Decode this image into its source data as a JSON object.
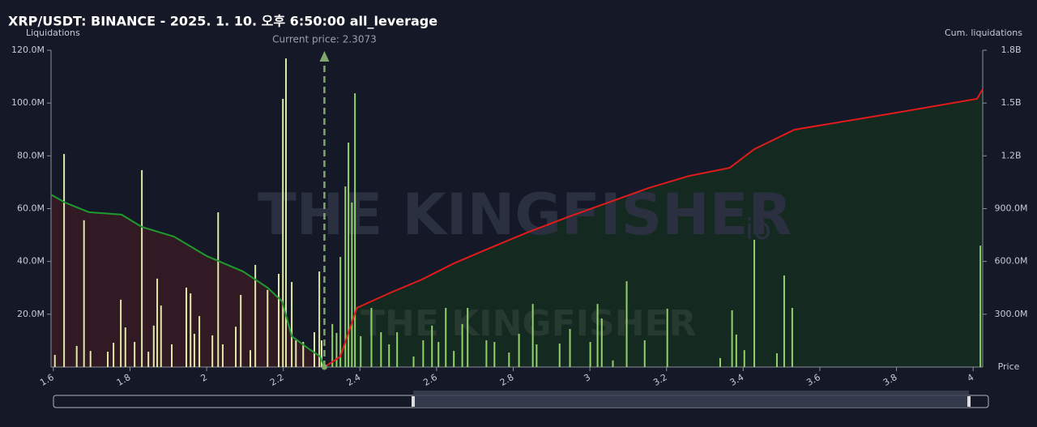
{
  "chart_data": {
    "type": "bar",
    "title": "XRP/USDT: BINANCE - 2025. 1. 10. 오후 6:50:00 all_leverage",
    "y_label": "Liquidations",
    "y2_label": "Cum. liquidations",
    "x_label": "Price",
    "watermark": "THE KINGFISHER",
    "watermark_suffix": "io",
    "annotation": "Current price: 2.3073",
    "current_price": 2.3073,
    "xlim": [
      1.594,
      4.025
    ],
    "xticks": [
      1.6,
      1.8,
      2,
      2.2,
      2.4,
      2.6,
      2.8,
      3,
      3.2,
      3.4,
      3.6,
      3.8,
      4
    ],
    "ylim": [
      0,
      120000000
    ],
    "yticks": [
      {
        "value": 20000000,
        "label": "20.0M"
      },
      {
        "value": 40000000,
        "label": "40.0M"
      },
      {
        "value": 60000000,
        "label": "60.0M"
      },
      {
        "value": 80000000,
        "label": "80.0M"
      },
      {
        "value": 100000000,
        "label": "100.0M"
      },
      {
        "value": 120000000,
        "label": "120.0M"
      }
    ],
    "y2lim": [
      0,
      1800000000
    ],
    "y2ticks": [
      {
        "value": 300000000,
        "label": "300.0M"
      },
      {
        "value": 600000000,
        "label": "600.0M"
      },
      {
        "value": 900000000,
        "label": "900.0M"
      },
      {
        "value": 1200000000,
        "label": "1.2B"
      },
      {
        "value": 1500000000,
        "label": "1.5B"
      },
      {
        "value": 1800000000,
        "label": "1.8B"
      }
    ],
    "series": [
      {
        "type": "bar",
        "color": "#dfe8a6",
        "x": [
          1.604,
          1.628,
          1.661,
          1.68,
          1.697,
          1.742,
          1.757,
          1.776,
          1.788,
          1.812,
          1.831,
          1.848,
          1.862,
          1.871,
          1.881,
          1.909,
          1.947,
          1.958,
          1.968,
          1.981,
          2.015,
          2.03,
          2.042,
          2.076,
          2.089,
          2.114,
          2.127,
          2.159,
          2.188,
          2.199,
          2.207,
          2.222,
          2.233,
          2.252,
          2.281,
          2.294,
          2.3
        ],
        "values": [
          4600000,
          80700000,
          8000000,
          55600000,
          6100000,
          5800000,
          9200000,
          25500000,
          15000000,
          9500000,
          74600000,
          5800000,
          15700000,
          33500000,
          23300000,
          8600000,
          30100000,
          27900000,
          12600000,
          19300000,
          12000000,
          58600000,
          8600000,
          15300000,
          27300000,
          6400000,
          38700000,
          29200000,
          35300000,
          101600000,
          116900000,
          32200000,
          10100000,
          9500000,
          13200000,
          36200000,
          10100000
        ]
      },
      {
        "type": "bar",
        "color": "#93d16e",
        "x": [
          2.328,
          2.339,
          2.349,
          2.362,
          2.37,
          2.379,
          2.387,
          2.402,
          2.43,
          2.455,
          2.476,
          2.497,
          2.54,
          2.565,
          2.588,
          2.605,
          2.624,
          2.645,
          2.667,
          2.681,
          2.73,
          2.751,
          2.789,
          2.815,
          2.851,
          2.861,
          2.921,
          2.948,
          3.001,
          3.02,
          3.031,
          3.06,
          3.096,
          3.143,
          3.202,
          3.34,
          3.371,
          3.382,
          3.403,
          3.429,
          3.488,
          3.507,
          3.528,
          4.019
        ],
        "values": [
          16300000,
          12900000,
          41700000,
          68400000,
          85000000,
          62300000,
          103700000,
          11700000,
          22400000,
          13200000,
          8600000,
          13200000,
          4000000,
          10100000,
          15700000,
          9500000,
          22400000,
          6100000,
          16300000,
          22400000,
          10100000,
          9500000,
          5500000,
          12600000,
          23900000,
          8600000,
          8900000,
          14400000,
          9500000,
          23900000,
          18400000,
          2500000,
          32500000,
          10100000,
          22100000,
          3400000,
          21500000,
          12300000,
          6400000,
          48200000,
          5200000,
          34700000,
          22400000,
          46000000
        ]
      },
      {
        "type": "line",
        "axis": "y2",
        "color": "#1f9a2e",
        "fill": "#321a25",
        "x": [
          1.594,
          1.63,
          1.693,
          1.778,
          1.831,
          1.915,
          2.0,
          2.095,
          2.159,
          2.197,
          2.222,
          2.265,
          2.296,
          2.3073
        ],
        "values": [
          980000000,
          935000000,
          880000000,
          866000000,
          796000000,
          741000000,
          631000000,
          543000000,
          451000000,
          373000000,
          175000000,
          106000000,
          60000000,
          0
        ]
      },
      {
        "type": "line",
        "axis": "y2",
        "color": "#e01b1b",
        "fill": "#14291f",
        "x": [
          2.3073,
          2.349,
          2.392,
          2.476,
          2.561,
          2.645,
          2.73,
          2.836,
          2.942,
          3.048,
          3.153,
          3.259,
          3.365,
          3.429,
          3.534,
          3.788,
          4.01,
          4.025
        ],
        "values": [
          0,
          60000000,
          336000000,
          419000000,
          497000000,
          589000000,
          668000000,
          764000000,
          852000000,
          935000000,
          1017000000,
          1086000000,
          1132000000,
          1238000000,
          1349000000,
          1441000000,
          1524000000,
          1579000000
        ]
      }
    ]
  }
}
